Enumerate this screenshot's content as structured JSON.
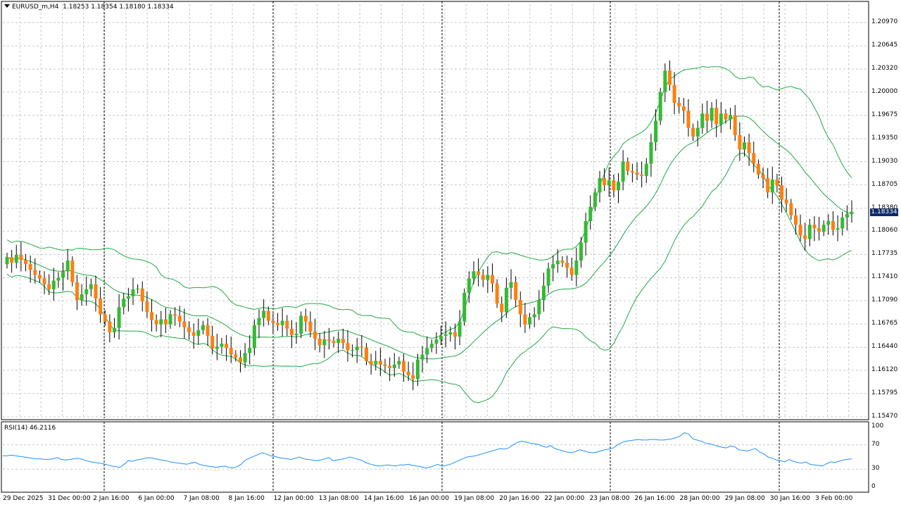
{
  "header": {
    "symbol": "EURUSD_m,H4",
    "open": "1.18253",
    "high": "1.18354",
    "low": "1.18180",
    "close": "1.18334"
  },
  "current_price_label": "1.18334",
  "rsi": {
    "label": "RSI(14) 46.2116",
    "levels": [
      "100",
      "70",
      "30",
      "0"
    ],
    "level_values": [
      100,
      70,
      30,
      0
    ],
    "line_color": "#1e90ff",
    "values": [
      52,
      52,
      53,
      52,
      51,
      50,
      49,
      48,
      47,
      47,
      46,
      46,
      47,
      49,
      46,
      45,
      46,
      47,
      48,
      46,
      44,
      42,
      41,
      40,
      39,
      37,
      35,
      34,
      33,
      38,
      44,
      43,
      45,
      46,
      48,
      49,
      48,
      46,
      45,
      44,
      42,
      41,
      40,
      39,
      38,
      40,
      41,
      38,
      36,
      35,
      34,
      33,
      34,
      35,
      33,
      32,
      34,
      38,
      45,
      48,
      51,
      54,
      57,
      55,
      52,
      51,
      49,
      48,
      47,
      46,
      48,
      50,
      47,
      46,
      45,
      44,
      45,
      47,
      49,
      44,
      45,
      46,
      48,
      50,
      48,
      46,
      44,
      40,
      38,
      36,
      35,
      36,
      37,
      36,
      35,
      37,
      37,
      38,
      36,
      35,
      34,
      32,
      33,
      35,
      38,
      35,
      36,
      38,
      41,
      44,
      47,
      50,
      51,
      52,
      54,
      56,
      58,
      60,
      62,
      64,
      63,
      65,
      70,
      74,
      76,
      75,
      73,
      72,
      71,
      68,
      66,
      69,
      64,
      62,
      60,
      58,
      57,
      59,
      62,
      60,
      58,
      57,
      58,
      60,
      62,
      63,
      65,
      70,
      74,
      76,
      77,
      78,
      79,
      78,
      78,
      79,
      79,
      78,
      78,
      79,
      80,
      82,
      85,
      90,
      88,
      80,
      78,
      76,
      73,
      72,
      70,
      68,
      66,
      65,
      68,
      67,
      62,
      61,
      60,
      62,
      64,
      58,
      55,
      50,
      48,
      45,
      44,
      42,
      46,
      43,
      41,
      40,
      42,
      38,
      37,
      36,
      35,
      39,
      42,
      41,
      43,
      45,
      46,
      47
    ]
  },
  "price_axis": {
    "ticks": [
      "1.20970",
      "1.20645",
      "1.20320",
      "1.20000",
      "1.19675",
      "1.19350",
      "1.19030",
      "1.18705",
      "1.18380",
      "1.18060",
      "1.17735",
      "1.17410",
      "1.17090",
      "1.16765",
      "1.16440",
      "1.16120",
      "1.15795",
      "1.15470"
    ],
    "tick_values": [
      1.2097,
      1.20645,
      1.2032,
      1.2,
      1.19675,
      1.1935,
      1.1903,
      1.18705,
      1.1838,
      1.1806,
      1.17735,
      1.1741,
      1.1709,
      1.16765,
      1.1644,
      1.1612,
      1.15795,
      1.1547
    ]
  },
  "time_axis": {
    "labels": [
      "29 Dec 2025",
      "31 Dec 00:00",
      "2 Jan 16:00",
      "6 Jan 00:00",
      "7 Jan 08:00",
      "8 Jan 16:00",
      "12 Jan 00:00",
      "13 Jan 08:00",
      "14 Jan 16:00",
      "16 Jan 00:00",
      "19 Jan 08:00",
      "20 Jan 16:00",
      "22 Jan 00:00",
      "23 Jan 08:00",
      "26 Jan 16:00",
      "28 Jan 00:00",
      "29 Jan 08:00",
      "30 Jan 16:00",
      "3 Feb 00:00"
    ]
  },
  "colors": {
    "bull": "#33bb33",
    "bear": "#ff7f0e",
    "wick": "#000000",
    "bands": "#22aa44",
    "grid": "#c8c8c8",
    "separators": "#000000",
    "price_tag": "#0b2a6b"
  },
  "chart_data": {
    "type": "candlestick",
    "symbol": "EURUSD_m",
    "timeframe": "H4",
    "ylim": [
      1.1547,
      1.2097
    ],
    "closes": [
      1.177,
      1.1762,
      1.1773,
      1.1766,
      1.176,
      1.1752,
      1.1745,
      1.174,
      1.1732,
      1.1725,
      1.1737,
      1.1741,
      1.175,
      1.1765,
      1.1735,
      1.171,
      1.1718,
      1.1725,
      1.1732,
      1.1712,
      1.169,
      1.168,
      1.1665,
      1.1671,
      1.17,
      1.1712,
      1.1715,
      1.1725,
      1.1726,
      1.1708,
      1.1693,
      1.1682,
      1.1676,
      1.1683,
      1.1676,
      1.169,
      1.1688,
      1.168,
      1.1672,
      1.1665,
      1.166,
      1.1668,
      1.1675,
      1.166,
      1.1642,
      1.1645,
      1.1649,
      1.1643,
      1.1634,
      1.163,
      1.1623,
      1.1636,
      1.1643,
      1.1675,
      1.1685,
      1.1695,
      1.1681,
      1.1678,
      1.1675,
      1.1681,
      1.167,
      1.1661,
      1.1663,
      1.1688,
      1.168,
      1.1666,
      1.1656,
      1.1647,
      1.1655,
      1.1653,
      1.165,
      1.1656,
      1.165,
      1.164,
      1.164,
      1.1645,
      1.1644,
      1.1625,
      1.162,
      1.1625,
      1.162,
      1.1618,
      1.1615,
      1.162,
      1.1625,
      1.161,
      1.1605,
      1.16,
      1.1627,
      1.1634,
      1.1643,
      1.1649,
      1.1655,
      1.166,
      1.1662,
      1.1665,
      1.1659,
      1.168,
      1.172,
      1.174,
      1.175,
      1.1745,
      1.1738,
      1.1745,
      1.1733,
      1.1705,
      1.1693,
      1.1727,
      1.1735,
      1.171,
      1.169,
      1.1676,
      1.1686,
      1.169,
      1.171,
      1.173,
      1.1754,
      1.176,
      1.1765,
      1.1762,
      1.1755,
      1.1745,
      1.1765,
      1.179,
      1.182,
      1.184,
      1.186,
      1.188,
      1.187,
      1.1877,
      1.1863,
      1.1875,
      1.1903,
      1.189,
      1.1888,
      1.1885,
      1.1883,
      1.19,
      1.193,
      1.196,
      1.2,
      1.203,
      1.201,
      1.1985,
      1.198,
      1.1974,
      1.195,
      1.1938,
      1.195,
      1.197,
      1.196,
      1.1978,
      1.1955,
      1.197,
      1.1962,
      1.1968,
      1.194,
      1.192,
      1.193,
      1.1915,
      1.19,
      1.1885,
      1.188,
      1.186,
      1.1878,
      1.187,
      1.185,
      1.1845,
      1.1828,
      1.1815,
      1.18,
      1.1795,
      1.1815,
      1.181,
      1.1805,
      1.1815,
      1.182,
      1.1808,
      1.181,
      1.1825,
      1.183,
      1.1833
    ]
  }
}
